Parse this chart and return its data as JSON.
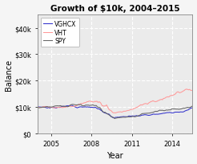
{
  "title": "Growth of $10k, 2004–2015",
  "xlabel": "Year",
  "ylabel": "Balance",
  "legend": [
    "VGHCX",
    "VHT",
    "SPY"
  ],
  "colors": [
    "#3333cc",
    "#ff9999",
    "#666666"
  ],
  "start_year": 2004.0,
  "end_year": 2015.5,
  "ylim": [
    0,
    45000
  ],
  "yticks": [
    0,
    10000,
    20000,
    30000,
    40000
  ],
  "ytick_labels": [
    "$0",
    "$10k",
    "$20k",
    "$30k",
    "$40k"
  ],
  "xticks": [
    2005,
    2008,
    2011,
    2014
  ],
  "plot_bg": "#ebebeb",
  "fig_bg": "#f5f5f5",
  "grid_color": "#ffffff",
  "figsize": [
    2.46,
    2.05
  ],
  "dpi": 100
}
